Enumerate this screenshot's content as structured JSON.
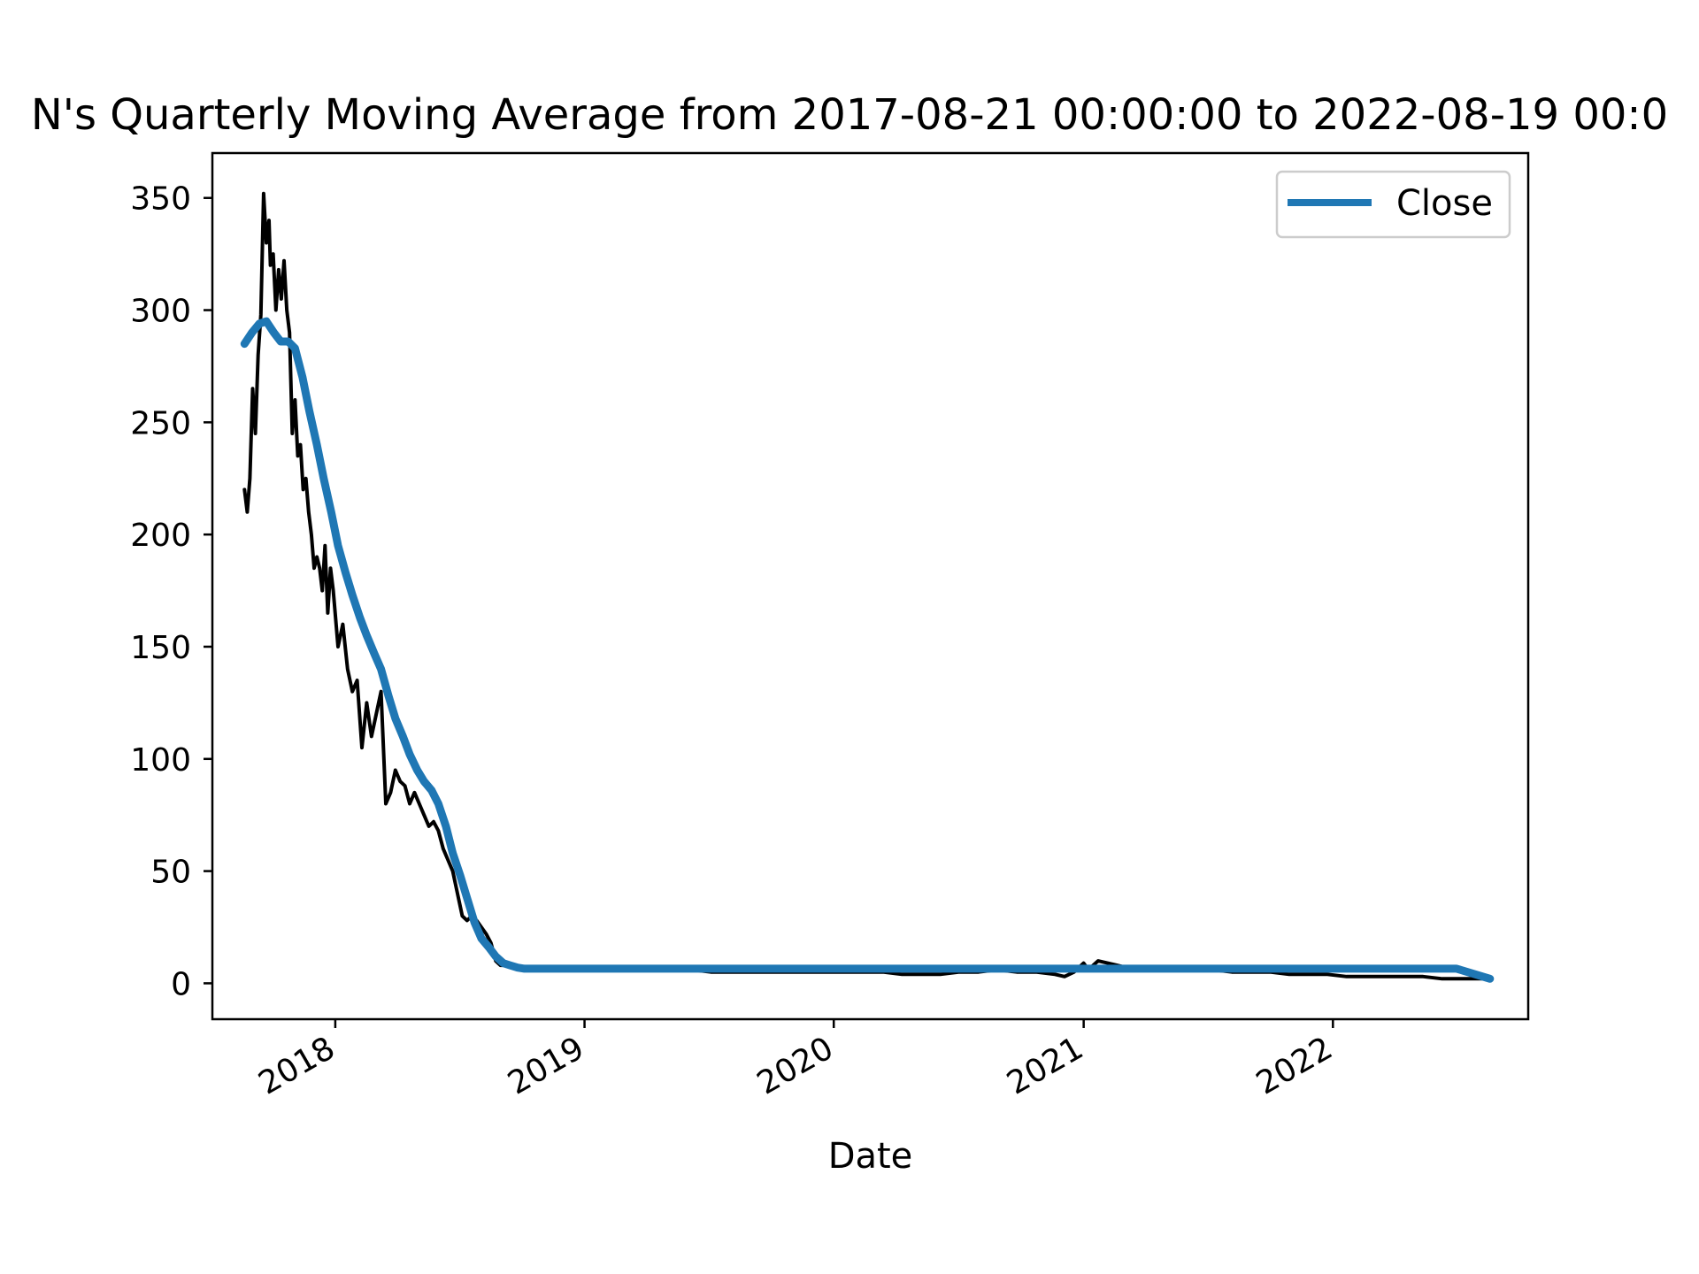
{
  "chart_data": {
    "type": "line",
    "title": "N's Quarterly Moving Average from 2017-08-21 00:00:00 to 2022-08-19 00:0",
    "xlabel": "Date",
    "ylabel": "",
    "x_ticks": [
      "2018",
      "2019",
      "2020",
      "2021",
      "2022"
    ],
    "y_ticks": [
      "0",
      "50",
      "100",
      "150",
      "200",
      "250",
      "300",
      "350"
    ],
    "xlim": [
      "2017-07-05",
      "2022-10-14"
    ],
    "ylim": [
      -16,
      370
    ],
    "grid": false,
    "legend": {
      "position": "upper right",
      "entries": [
        "Close"
      ]
    },
    "series": [
      {
        "name": "",
        "color": "#000000",
        "x": [
          "2017-08-21",
          "2017-08-25",
          "2017-08-29",
          "2017-09-02",
          "2017-09-06",
          "2017-09-10",
          "2017-09-14",
          "2017-09-18",
          "2017-09-22",
          "2017-09-26",
          "2017-09-28",
          "2017-10-02",
          "2017-10-06",
          "2017-10-10",
          "2017-10-14",
          "2017-10-18",
          "2017-10-22",
          "2017-10-26",
          "2017-10-30",
          "2017-11-03",
          "2017-11-07",
          "2017-11-11",
          "2017-11-15",
          "2017-11-19",
          "2017-11-23",
          "2017-11-27",
          "2017-12-01",
          "2017-12-05",
          "2017-12-09",
          "2017-12-13",
          "2017-12-17",
          "2017-12-21",
          "2017-12-25",
          "2017-12-29",
          "2018-01-05",
          "2018-01-12",
          "2018-01-19",
          "2018-01-26",
          "2018-02-02",
          "2018-02-09",
          "2018-02-16",
          "2018-02-23",
          "2018-03-02",
          "2018-03-09",
          "2018-03-16",
          "2018-03-23",
          "2018-03-30",
          "2018-04-06",
          "2018-04-13",
          "2018-04-20",
          "2018-04-27",
          "2018-05-04",
          "2018-05-11",
          "2018-05-18",
          "2018-05-25",
          "2018-06-01",
          "2018-06-08",
          "2018-06-15",
          "2018-06-22",
          "2018-06-29",
          "2018-07-06",
          "2018-07-13",
          "2018-07-20",
          "2018-07-27",
          "2018-08-03",
          "2018-08-10",
          "2018-08-17",
          "2018-08-24",
          "2018-08-31",
          "2018-09-07",
          "2018-09-14",
          "2018-09-21",
          "2018-09-28",
          "2018-10-05",
          "2018-10-12",
          "2018-10-26",
          "2018-11-09",
          "2018-11-23",
          "2018-12-07",
          "2018-12-21",
          "2019-01-18",
          "2019-02-15",
          "2019-03-15",
          "2019-04-12",
          "2019-05-10",
          "2019-06-07",
          "2019-07-05",
          "2019-08-02",
          "2019-08-30",
          "2019-09-27",
          "2019-10-25",
          "2019-11-22",
          "2019-12-20",
          "2020-01-17",
          "2020-02-14",
          "2020-03-13",
          "2020-04-10",
          "2020-05-08",
          "2020-06-05",
          "2020-07-03",
          "2020-07-31",
          "2020-08-28",
          "2020-09-25",
          "2020-10-23",
          "2020-11-20",
          "2020-12-04",
          "2020-12-18",
          "2021-01-01",
          "2021-01-08",
          "2021-01-15",
          "2021-01-22",
          "2021-02-05",
          "2021-02-19",
          "2021-03-05",
          "2021-03-19",
          "2021-04-16",
          "2021-05-14",
          "2021-06-11",
          "2021-07-09",
          "2021-08-06",
          "2021-09-03",
          "2021-10-01",
          "2021-10-29",
          "2021-11-26",
          "2021-12-24",
          "2022-01-21",
          "2022-02-18",
          "2022-03-18",
          "2022-04-15",
          "2022-05-13",
          "2022-06-10",
          "2022-07-08",
          "2022-08-05",
          "2022-08-19"
        ],
        "y": [
          220,
          210,
          225,
          265,
          245,
          280,
          298,
          352,
          330,
          340,
          320,
          325,
          300,
          318,
          305,
          322,
          300,
          290,
          245,
          260,
          235,
          240,
          220,
          225,
          210,
          200,
          185,
          190,
          185,
          175,
          195,
          165,
          185,
          175,
          150,
          160,
          140,
          130,
          135,
          105,
          125,
          110,
          120,
          130,
          80,
          85,
          95,
          90,
          88,
          80,
          85,
          80,
          75,
          70,
          72,
          68,
          60,
          55,
          50,
          40,
          30,
          28,
          30,
          28,
          25,
          22,
          18,
          10,
          8,
          8,
          8,
          8,
          7,
          7,
          7,
          7,
          7,
          7,
          7,
          7,
          7,
          7,
          7,
          6,
          6,
          6,
          5,
          5,
          5,
          5,
          5,
          5,
          5,
          5,
          5,
          5,
          4,
          4,
          4,
          5,
          5,
          6,
          5,
          5,
          4,
          3,
          5,
          9,
          6,
          8,
          10,
          9,
          8,
          7,
          7,
          6,
          6,
          6,
          6,
          5,
          5,
          5,
          4,
          4,
          4,
          3,
          3,
          3,
          3,
          3,
          2,
          2,
          2,
          2
        ]
      },
      {
        "name": "Close",
        "color": "#1f77b4",
        "x": [
          "2017-08-21",
          "2017-09-01",
          "2017-09-12",
          "2017-09-22",
          "2017-10-03",
          "2017-10-13",
          "2017-10-24",
          "2017-11-03",
          "2017-11-14",
          "2017-11-24",
          "2017-12-05",
          "2017-12-15",
          "2017-12-26",
          "2018-01-05",
          "2018-01-16",
          "2018-01-26",
          "2018-02-06",
          "2018-02-16",
          "2018-02-27",
          "2018-03-09",
          "2018-03-20",
          "2018-03-30",
          "2018-04-10",
          "2018-04-20",
          "2018-05-01",
          "2018-05-11",
          "2018-05-22",
          "2018-06-01",
          "2018-06-12",
          "2018-06-22",
          "2018-07-03",
          "2018-07-13",
          "2018-07-24",
          "2018-08-03",
          "2018-08-14",
          "2018-08-24",
          "2018-09-04",
          "2018-09-14",
          "2018-09-25",
          "2018-10-05",
          "2018-10-16",
          "2018-10-26",
          "2018-11-06",
          "2018-11-16",
          "2018-11-27",
          "2018-12-07",
          "2019-01-01",
          "2019-02-01",
          "2019-03-01",
          "2019-04-01",
          "2019-05-01",
          "2019-06-01",
          "2019-07-01",
          "2019-08-01",
          "2019-09-01",
          "2019-10-01",
          "2019-11-01",
          "2019-12-01",
          "2020-01-01",
          "2020-02-01",
          "2020-03-01",
          "2020-04-01",
          "2020-05-01",
          "2020-06-01",
          "2020-07-01",
          "2020-08-01",
          "2020-09-01",
          "2020-10-01",
          "2020-11-01",
          "2020-12-01",
          "2021-01-01",
          "2021-02-01",
          "2021-03-01",
          "2021-04-01",
          "2021-05-01",
          "2021-06-01",
          "2021-07-01",
          "2021-08-01",
          "2021-09-01",
          "2021-10-01",
          "2021-11-01",
          "2021-12-01",
          "2022-01-01",
          "2022-02-01",
          "2022-03-01",
          "2022-04-01",
          "2022-05-01",
          "2022-06-01",
          "2022-07-01",
          "2022-08-19"
        ],
        "y": [
          285,
          290,
          294,
          295,
          290,
          286,
          286,
          283,
          270,
          255,
          240,
          225,
          210,
          195,
          183,
          173,
          163,
          155,
          147,
          140,
          128,
          118,
          110,
          102,
          95,
          90,
          86,
          80,
          70,
          58,
          48,
          38,
          27,
          20,
          16,
          12,
          9,
          8,
          7,
          6.5,
          6.5,
          6.5,
          6.5,
          6.5,
          6.5,
          6.5,
          6.5,
          6.5,
          6.5,
          6.5,
          6.5,
          6.5,
          6.5,
          6.5,
          6.5,
          6.5,
          6.5,
          6.5,
          6.5,
          6.5,
          6.5,
          6.5,
          6.5,
          6.5,
          6.5,
          6.5,
          6.5,
          6.5,
          6.5,
          6.5,
          6.5,
          6.5,
          6.5,
          6.5,
          6.5,
          6.5,
          6.5,
          6.5,
          6.5,
          6.5,
          6.5,
          6.5,
          6.5,
          6.5,
          6.5,
          6.5,
          6.5,
          6.5,
          6.5,
          2
        ]
      }
    ]
  }
}
